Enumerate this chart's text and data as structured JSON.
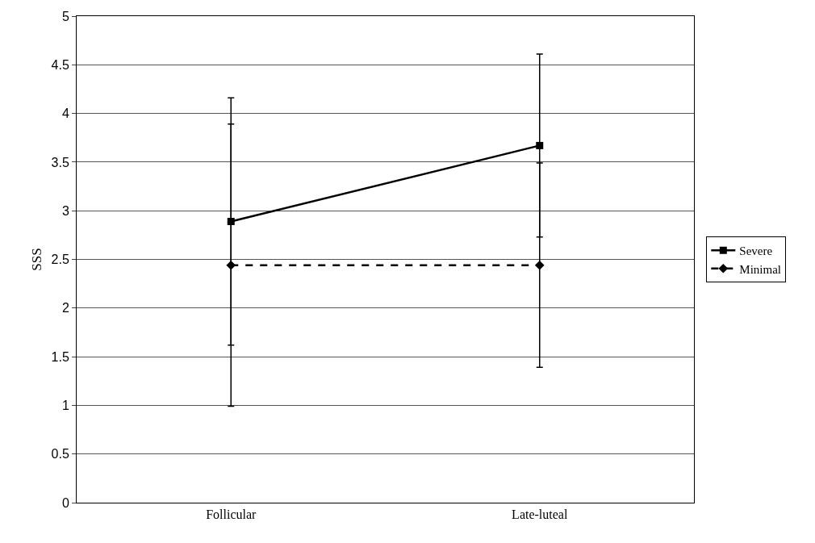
{
  "chart_data": {
    "type": "line",
    "ylabel": "SSS",
    "categories": [
      "Follicular",
      "Late-luteal"
    ],
    "series": [
      {
        "name": "Severe",
        "color": "#000000",
        "values": [
          2.89,
          3.67
        ],
        "errors": [
          1.27,
          0.94
        ],
        "marker": "square",
        "line_style": "solid"
      },
      {
        "name": "Minimal",
        "color": "#000000",
        "values": [
          2.44,
          2.44
        ],
        "errors": [
          1.45,
          1.05
        ],
        "marker": "diamond",
        "line_style": "dashed"
      }
    ],
    "ylim": [
      0,
      5
    ],
    "yticks": [
      0,
      0.5,
      1,
      1.5,
      2,
      2.5,
      3,
      3.5,
      4,
      4.5,
      5
    ],
    "grid": "y",
    "legend": "right"
  }
}
